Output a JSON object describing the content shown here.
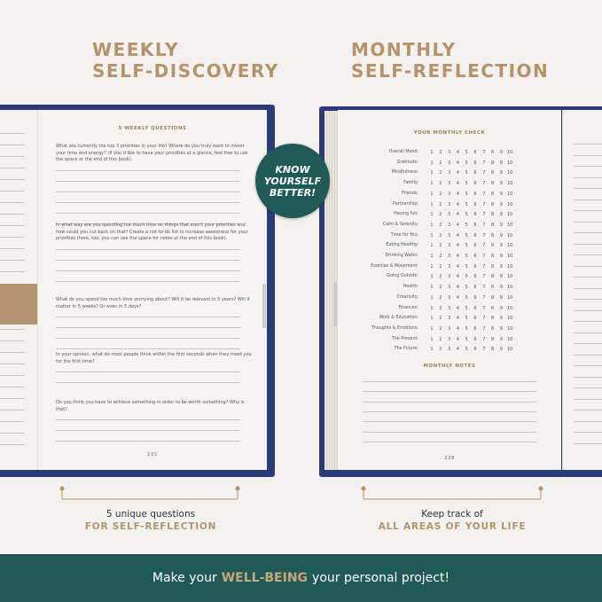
{
  "left": {
    "heading": [
      "WEEKLY",
      "SELF-DISCOVERY"
    ],
    "page_title": "5 WEEKLY QUESTIONS",
    "questions": [
      "What are currently the top 3 priorities in your life? Where do you truly want to invest your time and energy? (If you'd like to have your priorities at a glance, feel free to use the space at the end of this book).",
      "In what way are you spending too much time on things that aren't your priorities and how could you cut back on that? Create a not-to-do list to increase awareness for your priorities (here, too, you can use the space for notes at the end of this book).",
      "What do you spend too much time worrying about? Will it be relevant in 5 years? Will it matter in 5 weeks? Or even in 5 days?",
      "In your opinion, what do most people think within the first seconds when they meet you for the first time?",
      "Do you think you have to achieve something in order to be worth something? Why is that?"
    ],
    "page_number": "101",
    "caption": [
      "5 unique questions",
      "FOR SELF-REFLECTION"
    ]
  },
  "right": {
    "heading": [
      "MONTHLY",
      "SELF-REFLECTION"
    ],
    "page_title": "YOUR MONTHLY CHECK",
    "items": [
      "Overall Mood:",
      "Gratitude:",
      "Mindfulness:",
      "Family:",
      "Friends:",
      "Partnership:",
      "Having fun:",
      "Calm & Serenity:",
      "Time for You:",
      "Eating Healthy:",
      "Drinking Water:",
      "Exercise & Movement:",
      "Going Outside:",
      "Health:",
      "Creativity:",
      "Finances:",
      "Work & Education:",
      "Thoughts & Emotions:",
      "The Present:",
      "The Future:"
    ],
    "scale": [
      "1",
      "2",
      "3",
      "4",
      "5",
      "6",
      "7",
      "8",
      "9",
      "10"
    ],
    "notes_title": "MONTHLY NOTES",
    "page_number": "228",
    "caption": [
      "Keep track of",
      "ALL AREAS OF YOUR LIFE"
    ]
  },
  "badge": [
    "KNOW",
    "YOURSELF",
    "BETTER!"
  ],
  "banner": [
    "Make your",
    "WELL-BEING",
    "your personal project!"
  ]
}
